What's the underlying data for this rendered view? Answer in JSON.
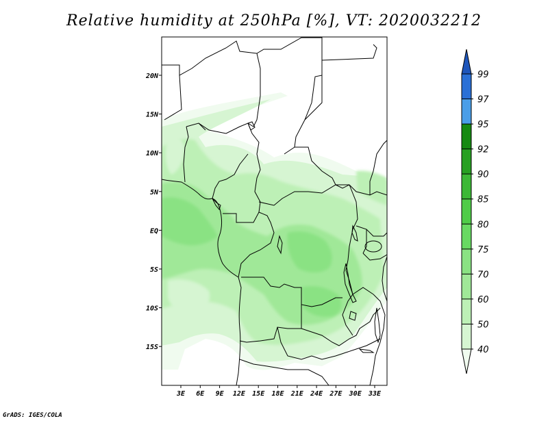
{
  "title": "Relative humidity at 250hPa [%], VT: 2020032212",
  "footer": "GrADS: IGES/COLA",
  "map": {
    "lat_labels": [
      "20N",
      "15N",
      "10N",
      "5N",
      "EQ",
      "5S",
      "10S",
      "15S"
    ],
    "lon_labels": [
      "3E",
      "6E",
      "9E",
      "12E",
      "15E",
      "18E",
      "21E",
      "24E",
      "27E",
      "30E",
      "33E"
    ]
  },
  "colorbar": {
    "levels": [
      "40",
      "50",
      "60",
      "70",
      "75",
      "80",
      "85",
      "90",
      "92",
      "95",
      "97",
      "99"
    ],
    "colors": [
      "#f0fbef",
      "#d6f5d2",
      "#bdf0b6",
      "#a0e898",
      "#8ae283",
      "#68d962",
      "#4fcc48",
      "#3cb836",
      "#27a022",
      "#168a12",
      "#4a9ee8",
      "#2a70d6",
      "#1e56bb"
    ]
  },
  "colors": {
    "land_outline": "#000000",
    "background": "#ffffff"
  }
}
